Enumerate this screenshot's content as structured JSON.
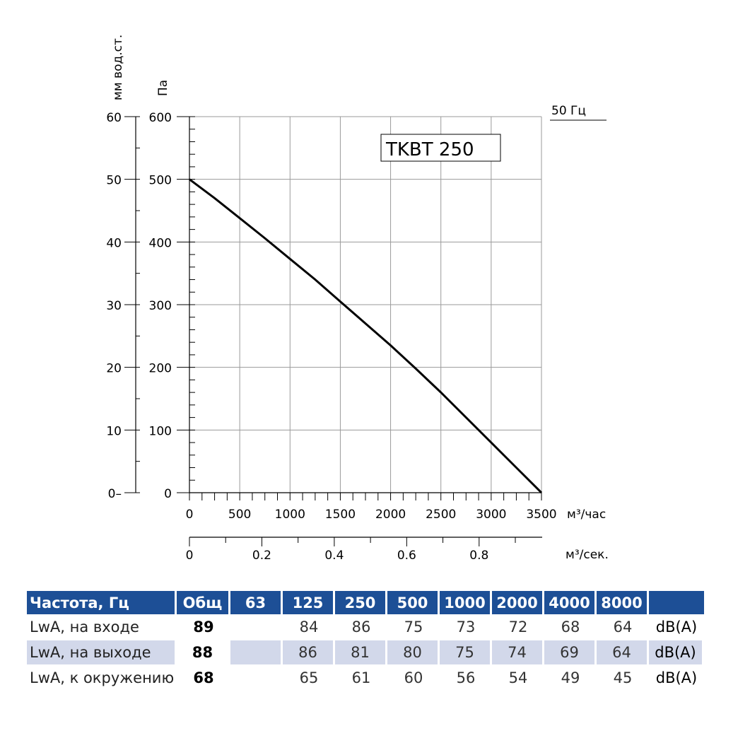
{
  "chart_data": {
    "type": "line",
    "model_label": "TKBT 250",
    "frequency_label": "50 Гц",
    "left_axis_label": "мм вод.ст.",
    "right_axis_label": "Па",
    "x_unit_main": "м³/час",
    "x_unit_secondary": "м³/сек.",
    "xlim": [
      0,
      3500
    ],
    "ylim_pa": [
      0,
      600
    ],
    "ylim_mm": [
      0,
      60
    ],
    "x_ticks": [
      "0",
      "500",
      "1000",
      "1500",
      "2000",
      "2500",
      "3000",
      "3500"
    ],
    "x2_ticks": [
      "0",
      "0.2",
      "0.4",
      "0.6",
      "0.8"
    ],
    "y_pa_ticks": [
      "0",
      "100",
      "200",
      "300",
      "400",
      "500",
      "600"
    ],
    "y_mm_ticks": [
      "0–",
      "10",
      "20",
      "30",
      "40",
      "50",
      "60"
    ],
    "grid": true,
    "series": [
      {
        "x": [
          0,
          250,
          500,
          750,
          1000,
          1250,
          1500,
          1750,
          2000,
          2250,
          2500,
          2750,
          3000,
          3250,
          3500
        ],
        "values": [
          500,
          470,
          438,
          406,
          373,
          340,
          305,
          270,
          235,
          198,
          160,
          120,
          80,
          40,
          0
        ]
      }
    ]
  },
  "table": {
    "header": [
      "Частота, Гц",
      "Общ",
      "63",
      "125",
      "250",
      "500",
      "1000",
      "2000",
      "4000",
      "8000",
      ""
    ],
    "rows": [
      {
        "label": "LwA, на входе",
        "total": "89",
        "values": [
          "",
          "84",
          "86",
          "75",
          "73",
          "72",
          "68",
          "64"
        ],
        "unit": "dB(A)"
      },
      {
        "label": "LwA, на выходе",
        "total": "88",
        "values": [
          "",
          "86",
          "81",
          "80",
          "75",
          "74",
          "69",
          "64"
        ],
        "unit": "dB(A)"
      },
      {
        "label": "LwA, к окружению",
        "total": "68",
        "values": [
          "",
          "65",
          "61",
          "60",
          "56",
          "54",
          "49",
          "45"
        ],
        "unit": "dB(A)"
      }
    ]
  }
}
